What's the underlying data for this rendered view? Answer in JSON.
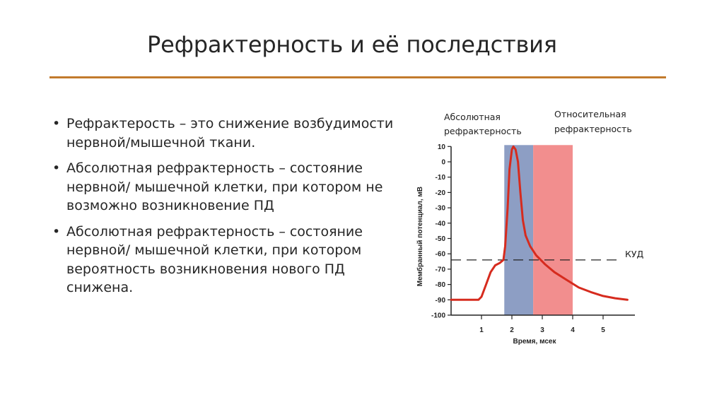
{
  "title": "Рефрактерность и её последствия",
  "bullets": [
    {
      "term": "Рефрактерость",
      "rest": " – это снижение возбудимости нервной/мышечной ткани."
    },
    {
      "term": "Абсолютная рефрактерность",
      "rest": " – состояние нервной/ мышечной клетки, при котором не возможно возникновение ПД"
    },
    {
      "term": "Абсолютная рефрактерность",
      "rest": " – состояние нервной/ мышечной клетки, при котором вероятность возникновения нового ПД снижена."
    }
  ],
  "chart_data": {
    "type": "line",
    "title": "",
    "xlabel": "Время, мсек",
    "ylabel": "Мембранный потенциал, мВ",
    "xlim": [
      0,
      6
    ],
    "ylim": [
      -100,
      10
    ],
    "x_ticks": [
      "1",
      "2",
      "3",
      "4",
      "5"
    ],
    "x_tick_values": [
      1,
      2,
      3,
      4,
      5
    ],
    "y_ticks": [
      "10",
      "0",
      "-10",
      "-20",
      "-30",
      "-40",
      "-50",
      "-60",
      "-70",
      "-80",
      "-90",
      "-100"
    ],
    "y_tick_values": [
      10,
      0,
      -10,
      -20,
      -30,
      -40,
      -50,
      -60,
      -70,
      -80,
      -90,
      -100
    ],
    "regions": [
      {
        "label": "Абсолютная рефрактерность",
        "x_start": 1.75,
        "x_end": 2.7,
        "color": "#8d9ec4"
      },
      {
        "label": "Относительная рефрактерность",
        "x_start": 2.7,
        "x_end": 4.0,
        "color": "#f28e8e"
      }
    ],
    "threshold": {
      "label": "КУД",
      "y": -64
    },
    "series": [
      {
        "color": "#d62b1e",
        "x": [
          0,
          0.9,
          1.0,
          1.15,
          1.3,
          1.45,
          1.6,
          1.72,
          1.78,
          1.86,
          1.92,
          2.0,
          2.05,
          2.12,
          2.2,
          2.28,
          2.36,
          2.45,
          2.6,
          2.8,
          3.1,
          3.4,
          3.8,
          4.2,
          4.6,
          5.0,
          5.4,
          5.8
        ],
        "y": [
          -90,
          -90,
          -88,
          -80,
          -72,
          -67.5,
          -66,
          -64,
          -55,
          -30,
          -5,
          8,
          10,
          8,
          0,
          -20,
          -38,
          -48,
          -55,
          -61,
          -67,
          -72,
          -77,
          -82,
          -85,
          -87.5,
          -89,
          -90
        ]
      }
    ],
    "grid": false,
    "legend": "none"
  }
}
